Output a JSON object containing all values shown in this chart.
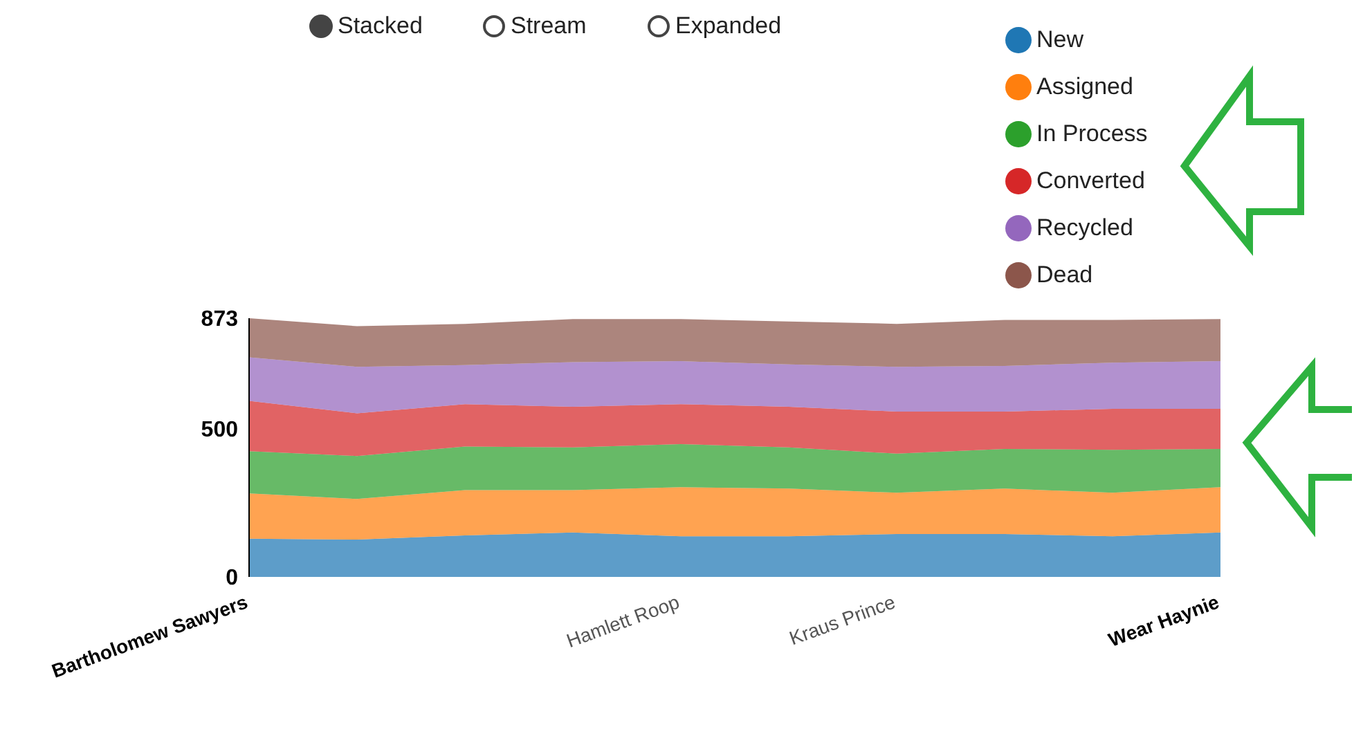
{
  "chart_data": {
    "type": "area",
    "stacked": true,
    "categories": [
      "Bartholomew Sawyers",
      null,
      null,
      null,
      "Hamlett Roop",
      null,
      "Kraus Prince",
      null,
      null,
      "Wear Haynie"
    ],
    "series": [
      {
        "name": "New",
        "color": "#1f77b4",
        "values": [
          129,
          126,
          140,
          150,
          137,
          137,
          145,
          145,
          137,
          150
        ]
      },
      {
        "name": "Assigned",
        "color": "#ff7f0e",
        "values": [
          153,
          137,
          153,
          143,
          166,
          161,
          139,
          153,
          147,
          153
        ]
      },
      {
        "name": "In Process",
        "color": "#2ca02c",
        "values": [
          142,
          145,
          147,
          144,
          145,
          139,
          132,
          134,
          145,
          129
        ]
      },
      {
        "name": "Converted",
        "color": "#d62728",
        "values": [
          170,
          144,
          143,
          137,
          135,
          137,
          142,
          126,
          138,
          135
        ]
      },
      {
        "name": "Recycled",
        "color": "#9467bd",
        "values": [
          147,
          157,
          132,
          151,
          145,
          143,
          151,
          154,
          156,
          161
        ]
      },
      {
        "name": "Dead",
        "color": "#8c564b",
        "values": [
          132,
          137,
          139,
          145,
          142,
          145,
          145,
          155,
          144,
          142
        ]
      }
    ],
    "ylim": [
      0,
      873
    ],
    "yticks": [
      0,
      500,
      873
    ],
    "grid": false,
    "legend": "top right",
    "annotations": [
      "Stacked",
      "Stream",
      "Expanded"
    ]
  }
}
